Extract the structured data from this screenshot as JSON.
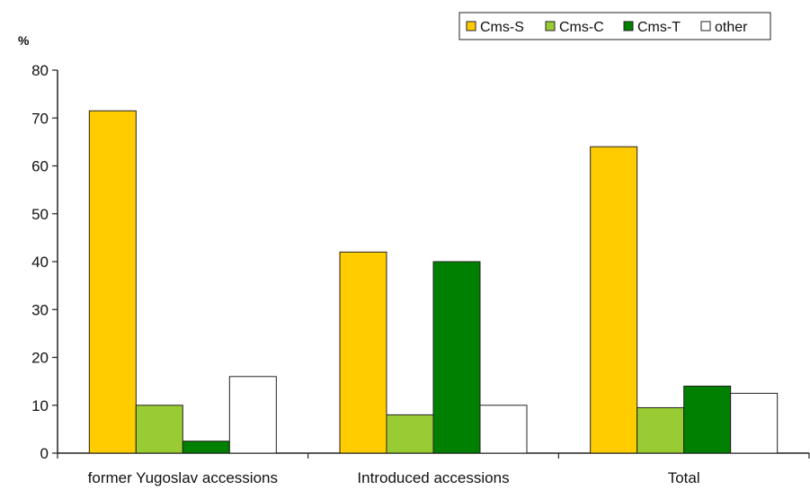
{
  "chart_data": {
    "type": "bar",
    "title": "",
    "xlabel": "",
    "ylabel": "%",
    "ylim": [
      0,
      80
    ],
    "yticks": [
      0,
      10,
      20,
      30,
      40,
      50,
      60,
      70,
      80
    ],
    "grid": false,
    "legend_position": "top-right",
    "categories": [
      "former Yugoslav accessions",
      "Introduced accessions",
      "Total"
    ],
    "series": [
      {
        "name": "Cms-S",
        "color": "#FFCC00",
        "values": [
          71.5,
          42,
          64
        ]
      },
      {
        "name": "Cms-C",
        "color": "#99CC33",
        "values": [
          10,
          8,
          9.5
        ]
      },
      {
        "name": "Cms-T",
        "color": "#008000",
        "values": [
          2.5,
          40,
          14
        ]
      },
      {
        "name": "other",
        "color": "#FFFFFF",
        "values": [
          16,
          10,
          12.5
        ]
      }
    ]
  }
}
